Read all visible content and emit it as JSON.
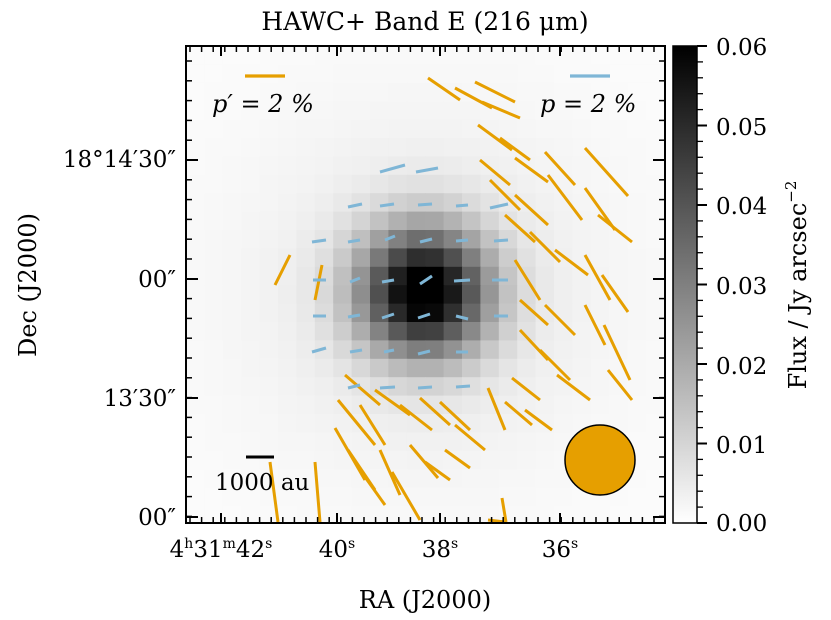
{
  "chart_data": {
    "type": "heatmap",
    "title": "HAWC+ Band E (216 μm)",
    "xlabel": "RA (J2000)",
    "ylabel": "Dec (J2000)",
    "colorbar_label": "Flux / Jy arcsec",
    "colorbar_label_sup": "−2",
    "colorbar_ticks": [
      "0.00",
      "0.01",
      "0.02",
      "0.03",
      "0.04",
      "0.05",
      "0.06"
    ],
    "colorbar_range": [
      0,
      0.06
    ],
    "colormap": "gray_r",
    "x_ticks": [
      {
        "pre": "4",
        "h": "h",
        "mid": "31",
        "m": "m",
        "val": "42",
        "s": "s"
      },
      {
        "pre": "",
        "h": "",
        "mid": "",
        "m": "",
        "val": "40",
        "s": "s"
      },
      {
        "pre": "",
        "h": "",
        "mid": "",
        "m": "",
        "val": "38",
        "s": "s"
      },
      {
        "pre": "",
        "h": "",
        "mid": "",
        "m": "",
        "val": "36",
        "s": "s"
      }
    ],
    "y_ticks": [
      "18°14′30″",
      "00″",
      "13′30″",
      "00″"
    ],
    "legend": [
      {
        "label_math": "p′ = 2 %",
        "color": "#E69F00",
        "position": "top-left"
      },
      {
        "label_math": "p = 2 %",
        "color": "#7FB6D6",
        "position": "top-right"
      }
    ],
    "scalebar_label": "1000 au",
    "beam_color": "#E69F00",
    "series_colors": {
      "p_prime": "#E69F00",
      "p": "#7FB6D6"
    },
    "grid": false,
    "flux_peak": 0.06
  }
}
